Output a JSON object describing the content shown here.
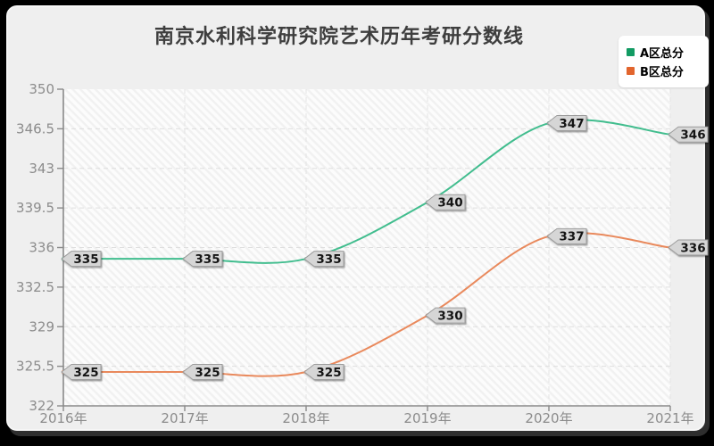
{
  "card": {
    "background": "#efefef",
    "frame_color": "#000000"
  },
  "chart_data": {
    "type": "line",
    "title": "南京水利科学研究院艺术历年考研分数线",
    "title_color": "#3e3e3e",
    "categories": [
      "2016年",
      "2017年",
      "2018年",
      "2019年",
      "2020年",
      "2021年"
    ],
    "series": [
      {
        "name": "A区总分",
        "line_color": "#41bd8e",
        "legend_color": "#129b63",
        "values": [
          335,
          335,
          335,
          340,
          347,
          346
        ]
      },
      {
        "name": "B区总分",
        "line_color": "#e9895c",
        "legend_color": "#e2652d",
        "values": [
          325,
          325,
          325,
          330,
          337,
          336
        ]
      }
    ],
    "ylim": [
      322,
      350
    ],
    "yticks": [
      322,
      325.5,
      329,
      332.5,
      336,
      339.5,
      343,
      346.5,
      350
    ],
    "ytick_labels": [
      "322",
      "325.5",
      "329",
      "332.5",
      "336",
      "339.5",
      "343",
      "346.5",
      "350"
    ],
    "smooth": true,
    "grid": true,
    "legend_position": "top-right",
    "data_labels": true,
    "axis_label_color": "#8c8c8c",
    "axis_line_color": "#8a8a8a",
    "gridline_color": "#dedede",
    "label_badge": {
      "fill": "#d6d6d6",
      "border": "#9c9c9c",
      "text_color": "#141414"
    }
  }
}
